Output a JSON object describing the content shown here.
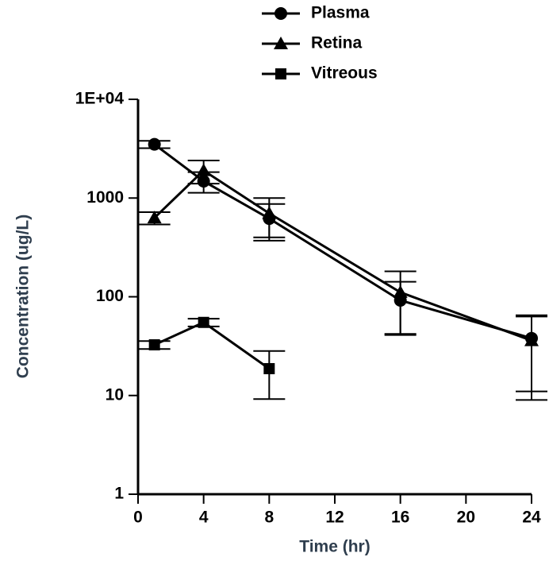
{
  "chart_data": {
    "type": "line",
    "x_label": "Time (hr)",
    "y_label": "Concentration (ug/L)",
    "y_log": true,
    "legend": "top",
    "xlim": [
      0,
      24
    ],
    "xticks": [
      0,
      4,
      8,
      12,
      16,
      20,
      24
    ],
    "ylim": [
      1,
      10000
    ],
    "yticks": [
      1,
      10,
      100,
      1000,
      {
        "value": 10000,
        "label": "1E+04"
      }
    ],
    "series": [
      {
        "name": "Plasma",
        "marker": "circle",
        "color": "#000000",
        "x": [
          1,
          4,
          8,
          16,
          24
        ],
        "values": [
          3500,
          1480,
          620,
          92,
          38
        ],
        "errors": [
          300,
          350,
          250,
          50,
          27
        ]
      },
      {
        "name": "Retina",
        "marker": "triangle",
        "color": "#000000",
        "x": [
          1,
          4,
          8,
          16,
          24
        ],
        "values": [
          630,
          1900,
          700,
          111,
          36
        ],
        "errors": [
          90,
          500,
          300,
          70,
          27
        ]
      },
      {
        "name": "Vitreous",
        "marker": "square",
        "color": "#000000",
        "x": [
          1,
          4,
          8
        ],
        "values": [
          32.6,
          55,
          18.7
        ],
        "errors": [
          3,
          5,
          9.5
        ]
      }
    ]
  }
}
